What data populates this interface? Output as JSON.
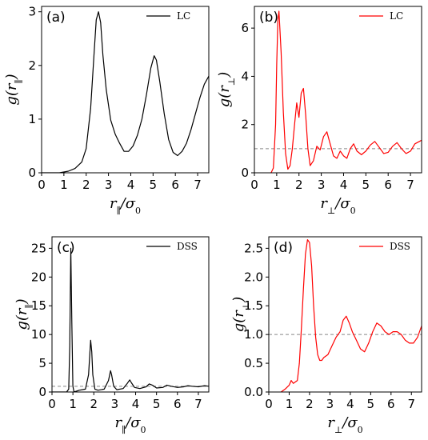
{
  "chart_data": [
    {
      "id": "a",
      "type": "line",
      "panel_label": "(a)",
      "xlabel_main": "r",
      "xlabel_sub": "∥",
      "xlabel_rest": "/σ",
      "xlabel_rest_sub": "0",
      "ylabel_main": "g(r",
      "ylabel_sub": "∥",
      "ylabel_end": ")",
      "xlim": [
        0,
        7.5
      ],
      "ylim": [
        0,
        3.1
      ],
      "xticks": [
        0,
        1,
        2,
        3,
        4,
        5,
        6,
        7
      ],
      "yticks": [
        0,
        1,
        2,
        3
      ],
      "legend": {
        "label": "LC",
        "position": "top-right"
      },
      "reference_line": null,
      "series": [
        {
          "name": "LC",
          "color": "#000000",
          "x": [
            0,
            0.8,
            1.2,
            1.5,
            1.8,
            2.0,
            2.2,
            2.35,
            2.45,
            2.55,
            2.65,
            2.75,
            2.9,
            3.1,
            3.3,
            3.5,
            3.7,
            3.9,
            4.1,
            4.3,
            4.5,
            4.7,
            4.9,
            5.05,
            5.15,
            5.3,
            5.5,
            5.7,
            5.9,
            6.1,
            6.3,
            6.5,
            6.7,
            6.9,
            7.1,
            7.3,
            7.5
          ],
          "y": [
            0,
            0,
            0.03,
            0.08,
            0.2,
            0.45,
            1.2,
            2.2,
            2.85,
            3.0,
            2.8,
            2.2,
            1.55,
            0.98,
            0.72,
            0.55,
            0.4,
            0.4,
            0.5,
            0.7,
            1.0,
            1.45,
            1.95,
            2.18,
            2.1,
            1.7,
            1.1,
            0.62,
            0.38,
            0.32,
            0.4,
            0.55,
            0.8,
            1.1,
            1.4,
            1.65,
            1.8
          ]
        }
      ]
    },
    {
      "id": "b",
      "type": "line",
      "panel_label": "(b)",
      "xlabel_main": "r",
      "xlabel_sub": "⊥",
      "xlabel_rest": "/σ",
      "xlabel_rest_sub": "0",
      "ylabel_main": "g(r",
      "ylabel_sub": "⊥",
      "ylabel_end": ")",
      "xlim": [
        0,
        7.5
      ],
      "ylim": [
        0,
        6.9
      ],
      "xticks": [
        0,
        1,
        2,
        3,
        4,
        5,
        6,
        7
      ],
      "yticks": [
        0,
        2,
        4,
        6
      ],
      "legend": {
        "label": "LC",
        "position": "top-right"
      },
      "reference_line": 1,
      "series": [
        {
          "name": "LC",
          "color": "#ff0000",
          "x": [
            0.75,
            0.85,
            0.95,
            1.0,
            1.05,
            1.1,
            1.2,
            1.3,
            1.4,
            1.5,
            1.6,
            1.7,
            1.8,
            1.9,
            2.0,
            2.1,
            2.2,
            2.3,
            2.4,
            2.5,
            2.65,
            2.8,
            2.95,
            3.1,
            3.25,
            3.4,
            3.55,
            3.7,
            3.85,
            4.0,
            4.15,
            4.3,
            4.45,
            4.6,
            4.8,
            5.0,
            5.2,
            5.4,
            5.6,
            5.8,
            6.0,
            6.2,
            6.4,
            6.6,
            6.8,
            7.0,
            7.2,
            7.5
          ],
          "y": [
            0,
            0.2,
            2.0,
            4.5,
            6.3,
            6.7,
            5.0,
            2.5,
            0.8,
            0.15,
            0.3,
            1.0,
            2.0,
            2.9,
            2.3,
            3.3,
            3.5,
            2.4,
            1.0,
            0.3,
            0.5,
            1.1,
            0.95,
            1.5,
            1.7,
            1.2,
            0.7,
            0.6,
            0.9,
            0.7,
            0.6,
            1.0,
            1.2,
            0.9,
            0.75,
            0.9,
            1.15,
            1.3,
            1.05,
            0.8,
            0.85,
            1.1,
            1.25,
            1.0,
            0.8,
            0.9,
            1.2,
            1.35
          ]
        }
      ]
    },
    {
      "id": "c",
      "type": "line",
      "panel_label": "(c)",
      "xlabel_main": "r",
      "xlabel_sub": "∥",
      "xlabel_rest": "/σ",
      "xlabel_rest_sub": "0",
      "ylabel_main": "g(r",
      "ylabel_sub": "∥",
      "ylabel_end": ")",
      "xlim": [
        0,
        7.5
      ],
      "ylim": [
        0,
        27
      ],
      "xticks": [
        0,
        1,
        2,
        3,
        4,
        5,
        6,
        7
      ],
      "yticks": [
        0,
        5,
        10,
        15,
        20,
        25
      ],
      "legend": {
        "label": "DSS",
        "position": "top-right"
      },
      "reference_line": 1,
      "series": [
        {
          "name": "DSS",
          "color": "#000000",
          "x": [
            0,
            0.7,
            0.8,
            0.85,
            0.9,
            0.95,
            1.0,
            1.05,
            1.1,
            1.3,
            1.6,
            1.75,
            1.85,
            1.9,
            1.95,
            2.05,
            2.2,
            2.5,
            2.7,
            2.8,
            2.85,
            2.95,
            3.1,
            3.4,
            3.6,
            3.72,
            3.8,
            3.95,
            4.2,
            4.5,
            4.65,
            4.8,
            5.0,
            5.3,
            5.5,
            5.7,
            6.0,
            6.3,
            6.5,
            6.7,
            7.0,
            7.3,
            7.5
          ],
          "y": [
            0,
            0,
            0.5,
            8,
            25,
            12,
            1,
            0.1,
            0.05,
            0.3,
            0.5,
            3,
            9,
            7,
            3,
            0.5,
            0.3,
            0.5,
            2,
            3.7,
            3,
            1,
            0.4,
            0.6,
            1.5,
            2.1,
            1.6,
            0.8,
            0.6,
            0.9,
            1.4,
            1.2,
            0.7,
            0.8,
            1.2,
            1.0,
            0.8,
            0.9,
            1.1,
            1.0,
            0.9,
            1.1,
            1.0
          ]
        }
      ]
    },
    {
      "id": "d",
      "type": "line",
      "panel_label": "(d)",
      "xlabel_main": "r",
      "xlabel_sub": "⊥",
      "xlabel_rest": "/σ",
      "xlabel_rest_sub": "0",
      "ylabel_main": "g(r",
      "ylabel_sub": "⊥",
      "ylabel_end": ")",
      "xlim": [
        0,
        7.5
      ],
      "ylim": [
        0,
        2.7
      ],
      "xticks": [
        0,
        1,
        2,
        3,
        4,
        5,
        6,
        7
      ],
      "yticks": [
        0.0,
        0.5,
        1.0,
        1.5,
        2.0,
        2.5
      ],
      "ytick_decimals": 1,
      "legend": {
        "label": "DSS",
        "position": "top-right"
      },
      "reference_line": 1,
      "series": [
        {
          "name": "DSS",
          "color": "#ff0000",
          "x": [
            0.6,
            0.8,
            1.0,
            1.1,
            1.2,
            1.4,
            1.5,
            1.6,
            1.7,
            1.8,
            1.9,
            2.0,
            2.1,
            2.2,
            2.3,
            2.4,
            2.5,
            2.6,
            2.7,
            2.9,
            3.1,
            3.3,
            3.5,
            3.65,
            3.8,
            3.95,
            4.1,
            4.3,
            4.5,
            4.7,
            4.9,
            5.1,
            5.3,
            5.5,
            5.7,
            5.9,
            6.1,
            6.3,
            6.5,
            6.7,
            6.9,
            7.1,
            7.3,
            7.5
          ],
          "y": [
            0,
            0.05,
            0.12,
            0.2,
            0.15,
            0.2,
            0.5,
            1.1,
            1.8,
            2.4,
            2.65,
            2.6,
            2.2,
            1.5,
            0.95,
            0.65,
            0.55,
            0.55,
            0.6,
            0.65,
            0.8,
            0.95,
            1.05,
            1.25,
            1.32,
            1.2,
            1.05,
            0.9,
            0.75,
            0.7,
            0.85,
            1.05,
            1.2,
            1.15,
            1.05,
            1.0,
            1.05,
            1.05,
            1.0,
            0.9,
            0.85,
            0.85,
            0.95,
            1.15
          ]
        }
      ]
    }
  ]
}
